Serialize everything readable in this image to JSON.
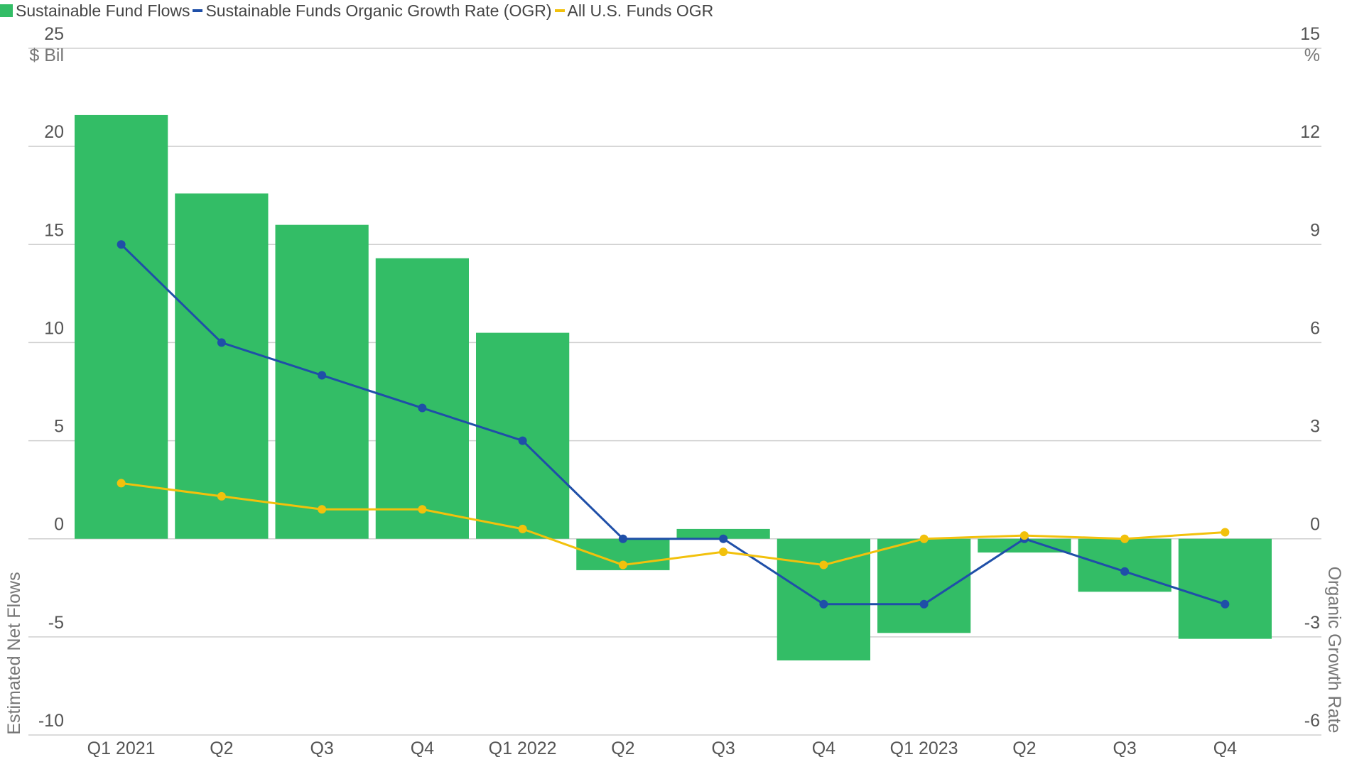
{
  "legend": [
    {
      "label": "Sustainable Fund Flows",
      "color": "#33bd66",
      "kind": "box"
    },
    {
      "label": "Sustainable Funds Organic Growth Rate (OGR)",
      "color": "#1f4fa8",
      "kind": "line"
    },
    {
      "label": "All U.S. Funds OGR",
      "color": "#f2c10c",
      "kind": "line"
    }
  ],
  "chart_data": {
    "type": "bar",
    "categories": [
      "Q1 2021",
      "Q2",
      "Q3",
      "Q4",
      "Q1 2022",
      "Q2",
      "Q3",
      "Q4",
      "Q1 2023",
      "Q2",
      "Q3",
      "Q4"
    ],
    "series": [
      {
        "name": "Sustainable Fund Flows",
        "type": "bar",
        "axis": "left",
        "color": "#33bd66",
        "values": [
          21.6,
          17.6,
          16.0,
          14.3,
          10.5,
          -1.6,
          0.5,
          -6.2,
          -4.8,
          -0.7,
          -2.7,
          -5.1
        ]
      },
      {
        "name": "Sustainable Funds Organic Growth Rate (OGR)",
        "type": "line",
        "axis": "right",
        "color": "#1f4fa8",
        "values": [
          9.0,
          6.0,
          5.0,
          4.0,
          3.0,
          0.0,
          0.0,
          -2.0,
          -2.0,
          0.0,
          -1.0,
          -2.0
        ]
      },
      {
        "name": "All U.S. Funds OGR",
        "type": "line",
        "axis": "right",
        "color": "#f2c10c",
        "values": [
          1.7,
          1.3,
          0.9,
          0.9,
          0.3,
          -0.8,
          -0.4,
          -0.8,
          0.0,
          0.1,
          0.0,
          0.2
        ]
      }
    ],
    "y_left": {
      "ticks": [
        "25",
        "20",
        "15",
        "10",
        "5",
        "0",
        "-5",
        "-10"
      ],
      "unit": "$ Bil",
      "label": "Estimated Net Flows",
      "ylim": [
        -10,
        25
      ]
    },
    "y_right": {
      "ticks": [
        "15",
        "12",
        "9",
        "6",
        "3",
        "0",
        "-3",
        "-6"
      ],
      "unit": "%",
      "label": "Organic Growth Rate",
      "ylim": [
        -6,
        15
      ]
    },
    "grid": true
  }
}
